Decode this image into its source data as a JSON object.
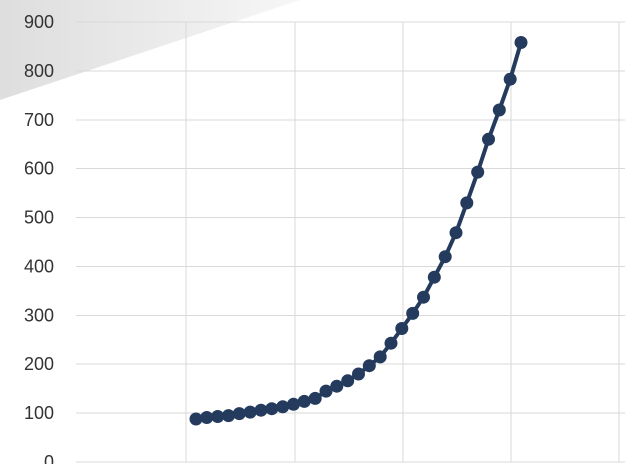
{
  "chart_data": {
    "type": "line",
    "title": "",
    "xlabel": "",
    "ylabel": "",
    "ylim": [
      0,
      900
    ],
    "y_ticks": [
      "0",
      "100",
      "200",
      "300",
      "400",
      "500",
      "600",
      "700",
      "800",
      "900"
    ],
    "grid": true,
    "legend": "none",
    "series": [
      {
        "color": "#243b5e",
        "values": [
          88,
          91,
          93,
          95,
          99,
          102,
          106,
          109,
          113,
          118,
          124,
          130,
          145,
          155,
          166,
          180,
          197,
          215,
          243,
          273,
          304,
          337,
          378,
          420,
          469,
          530,
          593,
          660,
          720,
          783,
          858
        ]
      }
    ]
  },
  "colors": {
    "watermark_band": "#e6e6e6"
  }
}
